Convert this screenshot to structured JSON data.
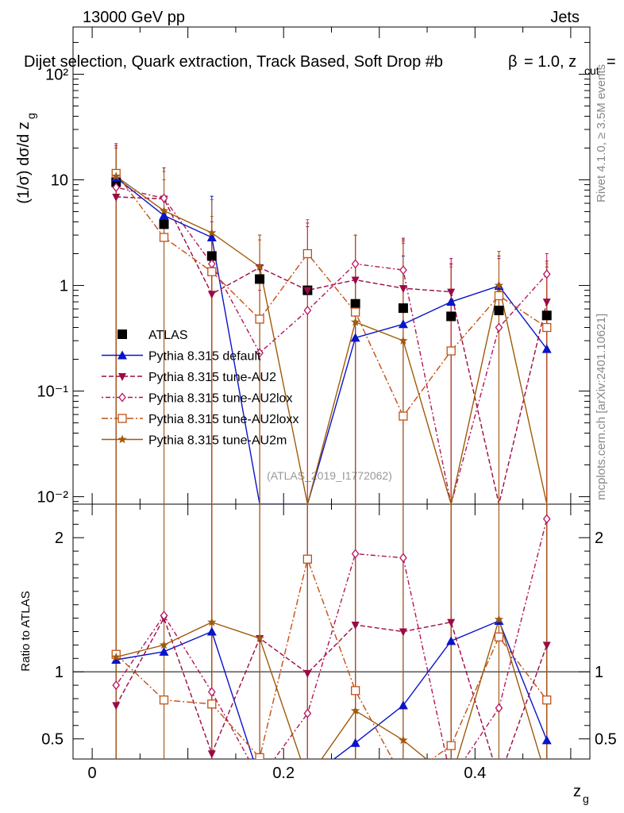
{
  "header": {
    "energy_label": "13000 GeV pp",
    "category_label": "Jets",
    "selection_label": "Dijet selection, Quark extraction, Track Based, Soft Drop #b",
    "beta_label": "= 1.0, z",
    "beta_symbol": "β",
    "zcut_sub": "cut",
    "zcut_eq": "=",
    "rivet_label": "Rivet 4.1.0, ≥ 3.5M events",
    "mcplots_label": "mcplots.cern.ch [arXiv:2401.10621]",
    "analysis_label": "(ATLAS_2019_I1772062)"
  },
  "colors": {
    "ATLAS": "#000000",
    "default": "#0a14c8",
    "AU2": "#9b0a46",
    "AU2lox": "#b4145a",
    "AU2loxx": "#c35014",
    "AU2m": "#a05a0a"
  },
  "chart_data": [
    {
      "type": "scatter",
      "panel": "main",
      "ylabel": "(1/σ) dσ/d z_g",
      "yscale": "log",
      "ylim": [
        0.0085,
        280
      ],
      "xlim": [
        -0.02,
        0.52
      ],
      "y_ticks": [
        "10⁻²",
        "10⁻¹",
        "1",
        "10",
        "10²"
      ],
      "x": [
        0.025,
        0.075,
        0.125,
        0.175,
        0.225,
        0.275,
        0.325,
        0.375,
        0.425,
        0.475
      ],
      "legend": [
        "ATLAS",
        "Pythia 8.315 default",
        "Pythia 8.315 tune-AU2",
        "Pythia 8.315 tune-AU2lox",
        "Pythia 8.315 tune-AU2loxx",
        "Pythia 8.315 tune-AU2m"
      ],
      "series": [
        {
          "name": "ATLAS",
          "key": "ATLAS",
          "marker": "square",
          "values": [
            9.5,
            3.8,
            1.9,
            1.15,
            0.9,
            0.67,
            0.61,
            0.51,
            0.58,
            0.52
          ]
        },
        {
          "name": "Pythia 8.315 default",
          "key": "default",
          "marker": "triangle",
          "line": "solid",
          "values": [
            10.5,
            4.6,
            2.85,
            0.0085,
            0.0085,
            0.32,
            0.43,
            0.7,
            0.99,
            0.25
          ],
          "err_top": [
            20,
            12,
            7,
            0.0085,
            0.0085,
            1.6,
            1.9,
            1.6,
            1.9,
            1.5
          ]
        },
        {
          "name": "Pythia 8.315 tune-AU2",
          "key": "AU2",
          "marker": "triangle-down",
          "line": "dashed",
          "values": [
            6.9,
            6.6,
            0.83,
            1.48,
            0.9,
            1.13,
            0.94,
            0.87,
            0.0085,
            0.7
          ],
          "err_top": [
            22,
            13,
            1.6,
            3.0,
            3.9,
            3.0,
            2.8,
            1.8,
            1.8,
            1.7
          ]
        },
        {
          "name": "Pythia 8.315 tune-AU2lox",
          "key": "AU2lox",
          "marker": "diamond",
          "line": "dotdash",
          "values": [
            8.5,
            6.7,
            1.6,
            0.23,
            0.58,
            1.6,
            1.4,
            0.0085,
            0.4,
            1.28
          ],
          "err_top": [
            21,
            12,
            4,
            0.9,
            3.6,
            3.0,
            2.7,
            1.6,
            1.8,
            2.0
          ]
        },
        {
          "name": "Pythia 8.315 tune-AU2loxx",
          "key": "AU2loxx",
          "marker": "open-square",
          "line": "dashdot",
          "values": [
            11.5,
            2.85,
            1.35,
            0.48,
            2.0,
            0.56,
            0.058,
            0.24,
            0.8,
            0.4
          ],
          "err_top": [
            20,
            10,
            4.5,
            2.7,
            4.2,
            3.0,
            2.6,
            1.5,
            2.1,
            1.6
          ]
        },
        {
          "name": "Pythia 8.315 tune-AU2m",
          "key": "AU2m",
          "marker": "star",
          "line": "solid",
          "values": [
            10.8,
            5.1,
            3.15,
            1.5,
            0.0085,
            0.45,
            0.3,
            0.0085,
            1.0,
            0.0085
          ],
          "err_top": [
            20,
            12,
            6.5,
            3.0,
            0.0085,
            3.0,
            2.5,
            0.0085,
            2.1,
            0.0085
          ]
        }
      ]
    },
    {
      "type": "line",
      "panel": "ratio",
      "ylabel": "Ratio to ATLAS",
      "xlabel": "z_g",
      "ylim": [
        0.35,
        2.25
      ],
      "xlim": [
        -0.02,
        0.52
      ],
      "y_ticks": [
        "0.5",
        "1",
        "2"
      ],
      "x_ticks": [
        "0",
        "0.2",
        "0.4"
      ],
      "x": [
        0.025,
        0.075,
        0.125,
        0.175,
        0.225,
        0.275,
        0.325,
        0.375,
        0.425,
        0.475
      ],
      "series": [
        {
          "name": "Pythia 8.315 default",
          "key": "default",
          "values": [
            1.09,
            1.15,
            1.3,
            0.2,
            0.2,
            0.47,
            0.75,
            1.23,
            1.38,
            0.49
          ]
        },
        {
          "name": "Pythia 8.315 tune-AU2",
          "key": "AU2",
          "values": [
            0.75,
            1.4,
            0.39,
            1.25,
            0.99,
            1.35,
            1.3,
            1.37,
            0.2,
            1.2
          ]
        },
        {
          "name": "Pythia 8.315 tune-AU2lox",
          "key": "AU2lox",
          "values": [
            0.9,
            1.42,
            0.85,
            0.2,
            0.69,
            1.88,
            1.85,
            0.2,
            0.73,
            2.14
          ]
        },
        {
          "name": "Pythia 8.315 tune-AU2loxx",
          "key": "AU2loxx",
          "values": [
            1.13,
            0.79,
            0.76,
            0.36,
            1.84,
            0.86,
            0.2,
            0.45,
            1.26,
            0.79
          ]
        },
        {
          "name": "Pythia 8.315 tune-AU2m",
          "key": "AU2m",
          "values": [
            1.11,
            1.2,
            1.37,
            1.25,
            0.2,
            0.71,
            0.49,
            0.2,
            1.39,
            0.2
          ]
        }
      ]
    }
  ]
}
